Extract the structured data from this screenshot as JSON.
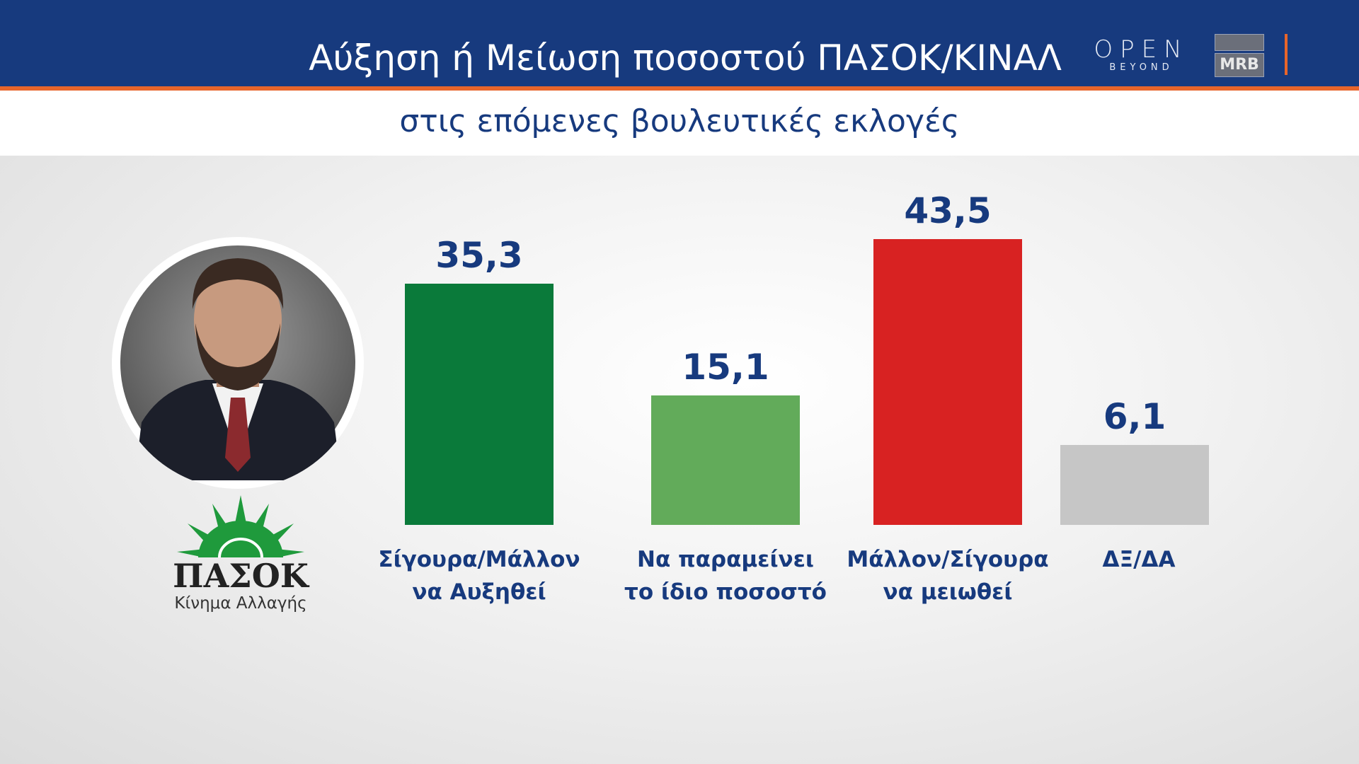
{
  "header": {
    "title": "Αύξηση ή Μείωση ποσοστού ΠΑΣΟΚ/ΚΙΝΑΛ",
    "subtitle": "στις επόμενες βουλευτικές εκλογές",
    "logo_open": "OPEN",
    "logo_open_sub": "BEYOND",
    "logo_mrb": "MRB"
  },
  "party": {
    "name": "ΠΑΣΟΚ",
    "subtitle": "Κίνημα Αλλαγής"
  },
  "colors": {
    "header": "#173a7e",
    "accent": "#e8652a",
    "text": "#173a7e"
  },
  "chart_data": {
    "type": "bar",
    "categories": [
      "Σίγουρα/Μάλλον να Αυξηθεί",
      "Να παραμείνει το ίδιο ποσοστό",
      "Μάλλον/Σίγουρα να μειωθεί",
      "ΔΞ/ΔΑ"
    ],
    "category_lines": [
      [
        "Σίγουρα/Μάλλον",
        "να Αυξηθεί"
      ],
      [
        "Να παραμείνει",
        "το ίδιο ποσοστό"
      ],
      [
        "Μάλλον/Σίγουρα",
        "να μειωθεί"
      ],
      [
        "ΔΞ/ΔΑ",
        ""
      ]
    ],
    "values": [
      35.3,
      15.1,
      43.5,
      6.1
    ],
    "value_labels": [
      "35,3",
      "15,1",
      "43,5",
      "6,1"
    ],
    "bar_colors": [
      "#0a7a3a",
      "#62ab5a",
      "#d82222",
      "#c6c6c6"
    ],
    "title": "Αύξηση ή Μείωση ποσοστού ΠΑΣΟΚ/ΚΙΝΑΛ",
    "grid": false
  }
}
